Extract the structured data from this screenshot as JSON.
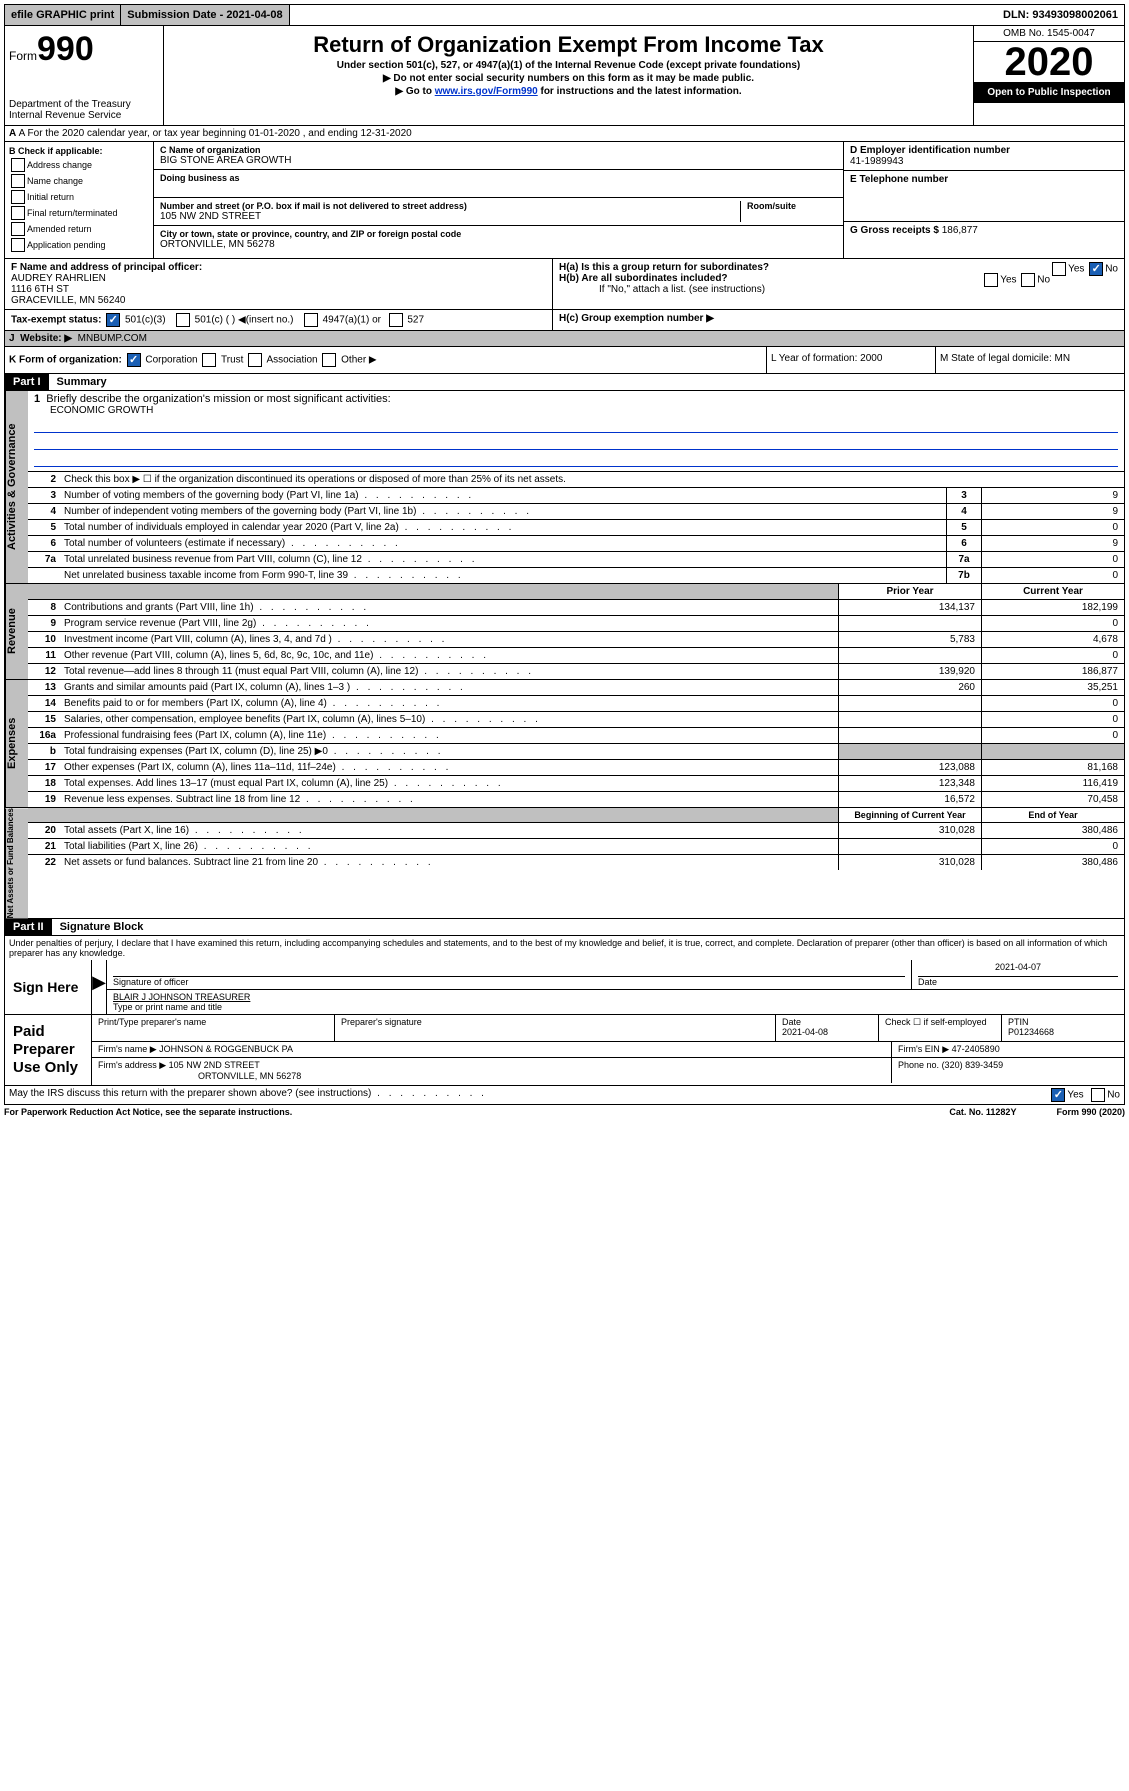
{
  "topbar": {
    "efile": "efile GRAPHIC print",
    "submission_label": "Submission Date - 2021-04-08",
    "dln": "DLN: 93493098002061"
  },
  "header": {
    "form_prefix": "Form",
    "form_number": "990",
    "dept": "Department of the Treasury",
    "irs": "Internal Revenue Service",
    "title": "Return of Organization Exempt From Income Tax",
    "subtitle": "Under section 501(c), 527, or 4947(a)(1) of the Internal Revenue Code (except private foundations)",
    "note1": "▶ Do not enter social security numbers on this form as it may be made public.",
    "note2_pre": "▶ Go to ",
    "note2_link": "www.irs.gov/Form990",
    "note2_post": " for instructions and the latest information.",
    "omb": "OMB No. 1545-0047",
    "year": "2020",
    "open": "Open to Public Inspection"
  },
  "lineA": "A For the 2020 calendar year, or tax year beginning 01-01-2020    , and ending 12-31-2020",
  "boxB": {
    "label": "B Check if applicable:",
    "items": [
      "Address change",
      "Name change",
      "Initial return",
      "Final return/terminated",
      "Amended return",
      "Application pending"
    ]
  },
  "boxC": {
    "name_label": "C Name of organization",
    "name": "BIG STONE AREA GROWTH",
    "dba_label": "Doing business as",
    "street_label": "Number and street (or P.O. box if mail is not delivered to street address)",
    "room_label": "Room/suite",
    "street": "105 NW 2ND STREET",
    "city_label": "City or town, state or province, country, and ZIP or foreign postal code",
    "city": "ORTONVILLE, MN  56278"
  },
  "boxD": {
    "label": "D Employer identification number",
    "value": "41-1989943"
  },
  "boxE": {
    "label": "E Telephone number",
    "value": ""
  },
  "boxG": {
    "label": "G Gross receipts $",
    "value": "186,877"
  },
  "boxF": {
    "label": "F  Name and address of principal officer:",
    "name": "AUDREY RAHRLIEN",
    "street": "1116 6TH ST",
    "city": "GRACEVILLE, MN  56240"
  },
  "boxH": {
    "a": "H(a)  Is this a group return for subordinates?",
    "b": "H(b)  Are all subordinates included?",
    "b_note": "If \"No,\" attach a list. (see instructions)",
    "c": "H(c)  Group exemption number ▶",
    "yes": "Yes",
    "no": "No"
  },
  "taxexempt": {
    "label": "Tax-exempt status:",
    "c3": "501(c)(3)",
    "c": "501(c) (  ) ◀(insert no.)",
    "a1": "4947(a)(1) or",
    "s527": "527"
  },
  "lineJ": {
    "label": "J",
    "text": "Website: ▶",
    "value": "MNBUMP.COM"
  },
  "lineK": {
    "label": "K Form of organization:",
    "corp": "Corporation",
    "trust": "Trust",
    "assoc": "Association",
    "other": "Other ▶",
    "L": "L Year of formation: 2000",
    "M": "M State of legal domicile: MN"
  },
  "parts": {
    "p1": "Part I",
    "p1t": "Summary",
    "p2": "Part II",
    "p2t": "Signature Block"
  },
  "summary": {
    "q1": "Briefly describe the organization's mission or most significant activities:",
    "mission": "ECONOMIC GROWTH",
    "q2": "Check this box ▶ ☐  if the organization discontinued its operations or disposed of more than 25% of its net assets.",
    "rows_top": [
      {
        "n": "3",
        "t": "Number of voting members of the governing body (Part VI, line 1a)",
        "box": "3",
        "v": "9"
      },
      {
        "n": "4",
        "t": "Number of independent voting members of the governing body (Part VI, line 1b)",
        "box": "4",
        "v": "9"
      },
      {
        "n": "5",
        "t": "Total number of individuals employed in calendar year 2020 (Part V, line 2a)",
        "box": "5",
        "v": "0"
      },
      {
        "n": "6",
        "t": "Total number of volunteers (estimate if necessary)",
        "box": "6",
        "v": "9"
      },
      {
        "n": "7a",
        "t": "Total unrelated business revenue from Part VIII, column (C), line 12",
        "box": "7a",
        "v": "0"
      },
      {
        "n": "",
        "t": "Net unrelated business taxable income from Form 990-T, line 39",
        "box": "7b",
        "v": "0"
      }
    ],
    "col_hdr_prior": "Prior Year",
    "col_hdr_curr": "Current Year",
    "rev": [
      {
        "n": "8",
        "t": "Contributions and grants (Part VIII, line 1h)",
        "p": "134,137",
        "c": "182,199"
      },
      {
        "n": "9",
        "t": "Program service revenue (Part VIII, line 2g)",
        "p": "",
        "c": "0"
      },
      {
        "n": "10",
        "t": "Investment income (Part VIII, column (A), lines 3, 4, and 7d )",
        "p": "5,783",
        "c": "4,678"
      },
      {
        "n": "11",
        "t": "Other revenue (Part VIII, column (A), lines 5, 6d, 8c, 9c, 10c, and 11e)",
        "p": "",
        "c": "0"
      },
      {
        "n": "12",
        "t": "Total revenue—add lines 8 through 11 (must equal Part VIII, column (A), line 12)",
        "p": "139,920",
        "c": "186,877"
      }
    ],
    "exp": [
      {
        "n": "13",
        "t": "Grants and similar amounts paid (Part IX, column (A), lines 1–3 )",
        "p": "260",
        "c": "35,251"
      },
      {
        "n": "14",
        "t": "Benefits paid to or for members (Part IX, column (A), line 4)",
        "p": "",
        "c": "0"
      },
      {
        "n": "15",
        "t": "Salaries, other compensation, employee benefits (Part IX, column (A), lines 5–10)",
        "p": "",
        "c": "0"
      },
      {
        "n": "16a",
        "t": "Professional fundraising fees (Part IX, column (A), line 11e)",
        "p": "",
        "c": "0"
      },
      {
        "n": "b",
        "t": "Total fundraising expenses (Part IX, column (D), line 25) ▶0",
        "p": "shade",
        "c": "shade"
      },
      {
        "n": "17",
        "t": "Other expenses (Part IX, column (A), lines 11a–11d, 11f–24e)",
        "p": "123,088",
        "c": "81,168"
      },
      {
        "n": "18",
        "t": "Total expenses. Add lines 13–17 (must equal Part IX, column (A), line 25)",
        "p": "123,348",
        "c": "116,419"
      },
      {
        "n": "19",
        "t": "Revenue less expenses. Subtract line 18 from line 12",
        "p": "16,572",
        "c": "70,458"
      }
    ],
    "col_hdr_beg": "Beginning of Current Year",
    "col_hdr_end": "End of Year",
    "net": [
      {
        "n": "20",
        "t": "Total assets (Part X, line 16)",
        "p": "310,028",
        "c": "380,486"
      },
      {
        "n": "21",
        "t": "Total liabilities (Part X, line 26)",
        "p": "",
        "c": "0"
      },
      {
        "n": "22",
        "t": "Net assets or fund balances. Subtract line 21 from line 20",
        "p": "310,028",
        "c": "380,486"
      }
    ]
  },
  "vtabs": {
    "gov": "Activities & Governance",
    "rev": "Revenue",
    "exp": "Expenses",
    "net": "Net Assets or Fund Balances"
  },
  "perjury": "Under penalties of perjury, I declare that I have examined this return, including accompanying schedules and statements, and to the best of my knowledge and belief, it is true, correct, and complete. Declaration of preparer (other than officer) is based on all information of which preparer has any knowledge.",
  "sign": {
    "here": "Sign Here",
    "sig_officer": "Signature of officer",
    "date": "2021-04-07",
    "date_label": "Date",
    "name": "BLAIR J JOHNSON  TREASURER",
    "name_label": "Type or print name and title"
  },
  "paid": {
    "label": "Paid Preparer Use Only",
    "h_name": "Print/Type preparer's name",
    "h_sig": "Preparer's signature",
    "h_date": "Date",
    "date": "2021-04-08",
    "h_check": "Check ☐ if self-employed",
    "h_ptin": "PTIN",
    "ptin": "P01234668",
    "firm_name_l": "Firm's name     ▶",
    "firm_name": "JOHNSON & ROGGENBUCK PA",
    "firm_ein_l": "Firm's EIN ▶",
    "firm_ein": "47-2405890",
    "firm_addr_l": "Firm's address ▶",
    "firm_addr1": "105 NW 2ND STREET",
    "firm_addr2": "ORTONVILLE, MN  56278",
    "phone_l": "Phone no.",
    "phone": "(320) 839-3459"
  },
  "discuss": "May the IRS discuss this return with the preparer shown above? (see instructions)",
  "footer": {
    "left": "For Paperwork Reduction Act Notice, see the separate instructions.",
    "mid": "Cat. No. 11282Y",
    "right": "Form 990 (2020)"
  },
  "yes": "Yes",
  "no": "No"
}
